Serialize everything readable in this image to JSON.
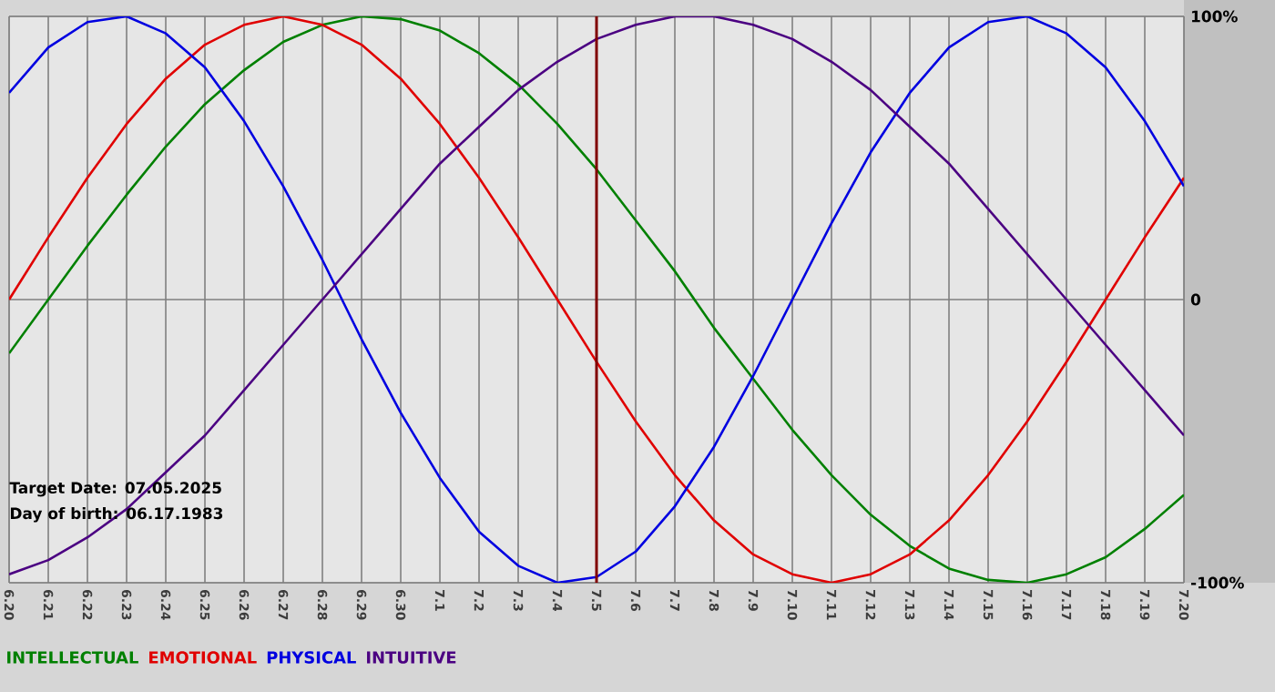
{
  "chart_data": {
    "type": "line",
    "categories": [
      "6.20",
      "6.21",
      "6.22",
      "6.23",
      "6.24",
      "6.25",
      "6.26",
      "6.27",
      "6.28",
      "6.29",
      "6.30",
      "7.1",
      "7.2",
      "7.3",
      "7.4",
      "7.5",
      "7.6",
      "7.7",
      "7.8",
      "7.9",
      "7.10",
      "7.11",
      "7.12",
      "7.13",
      "7.14",
      "7.15",
      "7.16",
      "7.17",
      "7.18",
      "7.19",
      "7.20"
    ],
    "series": [
      {
        "name": "INTELLECTUAL",
        "color": "#008000",
        "values": [
          -19,
          0,
          19,
          37,
          54,
          69,
          81,
          91,
          97,
          100,
          99,
          95,
          87,
          76,
          62,
          46,
          28,
          10,
          -10,
          -28,
          -46,
          -62,
          -76,
          -87,
          -95,
          -99,
          -100,
          -97,
          -91,
          -81,
          -69
        ]
      },
      {
        "name": "EMOTIONAL",
        "color": "#e00000",
        "values": [
          0,
          22,
          43,
          62,
          78,
          90,
          97,
          100,
          97,
          90,
          78,
          62,
          43,
          22,
          0,
          -22,
          -43,
          -62,
          -78,
          -90,
          -97,
          -100,
          -97,
          -90,
          -78,
          -62,
          -43,
          -22,
          0,
          22,
          43
        ]
      },
      {
        "name": "PHYSICAL",
        "color": "#0000e0",
        "values": [
          73,
          89,
          98,
          100,
          94,
          82,
          63,
          40,
          14,
          -14,
          -40,
          -63,
          -82,
          -94,
          -100,
          -98,
          -89,
          -73,
          -52,
          -27,
          0,
          27,
          52,
          73,
          89,
          98,
          100,
          94,
          82,
          63,
          40
        ]
      },
      {
        "name": "INTUITIVE",
        "color": "#4b0082",
        "values": [
          -97,
          -92,
          -84,
          -74,
          -61,
          -48,
          -32,
          -16,
          0,
          16,
          32,
          48,
          61,
          74,
          84,
          92,
          97,
          100,
          100,
          97,
          92,
          84,
          74,
          61,
          48,
          32,
          16,
          0,
          -16,
          -32,
          -48
        ]
      }
    ],
    "ylim": [
      -100,
      100
    ],
    "yticks": [
      {
        "value": 100,
        "label": "100%"
      },
      0,
      {
        "value": -100,
        "label": "-100%"
      }
    ],
    "grid": true,
    "legend": "bottom left",
    "ref_lines": [
      {
        "axis": "x",
        "value": "7.5",
        "color": "#800000"
      }
    ],
    "annotations": [
      "Target Date: 07.05.2025",
      "Day of birth: 06.17.1983"
    ]
  }
}
